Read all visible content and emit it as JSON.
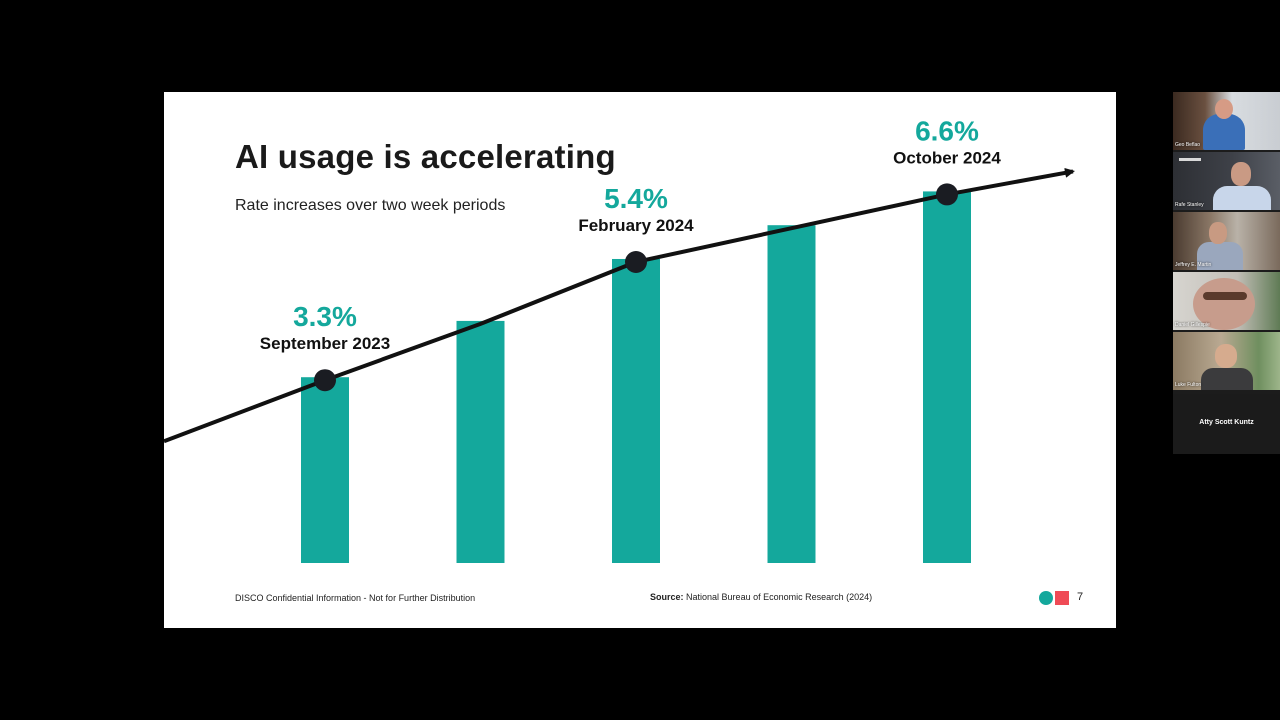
{
  "slide": {
    "title": "AI usage is accelerating",
    "subtitle": "Rate increases over two week periods",
    "footer_confidential": "DISCO Confidential Information - Not for Further Distribution",
    "source_label": "Source:",
    "source_text": "National Bureau of Economic Research (2024)",
    "page_number": "7",
    "colors": {
      "bar": "#14a89c",
      "value_label": "#14a89c",
      "trend_line": "#111111",
      "logo_square": "#ef4b56"
    }
  },
  "chart_data": {
    "type": "bar",
    "title": "AI usage is accelerating",
    "subtitle": "Rate increases over two week periods",
    "values": [
      3.3,
      4.3,
      5.4,
      6.0,
      6.6
    ],
    "annotations": [
      {
        "index": 0,
        "value_label": "3.3%",
        "date_label": "September 2023"
      },
      {
        "index": 2,
        "value_label": "5.4%",
        "date_label": "February 2024"
      },
      {
        "index": 4,
        "value_label": "6.6%",
        "date_label": "October 2024"
      }
    ],
    "trend_line": true,
    "grid": false
  },
  "participants": [
    {
      "name": "Geo Beflao",
      "icon": "participant-video"
    },
    {
      "name": "Rafe Stanley",
      "icon": "participant-video"
    },
    {
      "name": "Jeffrey E. Martin",
      "icon": "participant-video"
    },
    {
      "name": "Daniel Gillespie",
      "icon": "participant-video"
    },
    {
      "name": "Luke Fulton",
      "icon": "participant-video"
    },
    {
      "name": "Atty Scott Kuntz",
      "icon": "participant-no-video"
    }
  ]
}
